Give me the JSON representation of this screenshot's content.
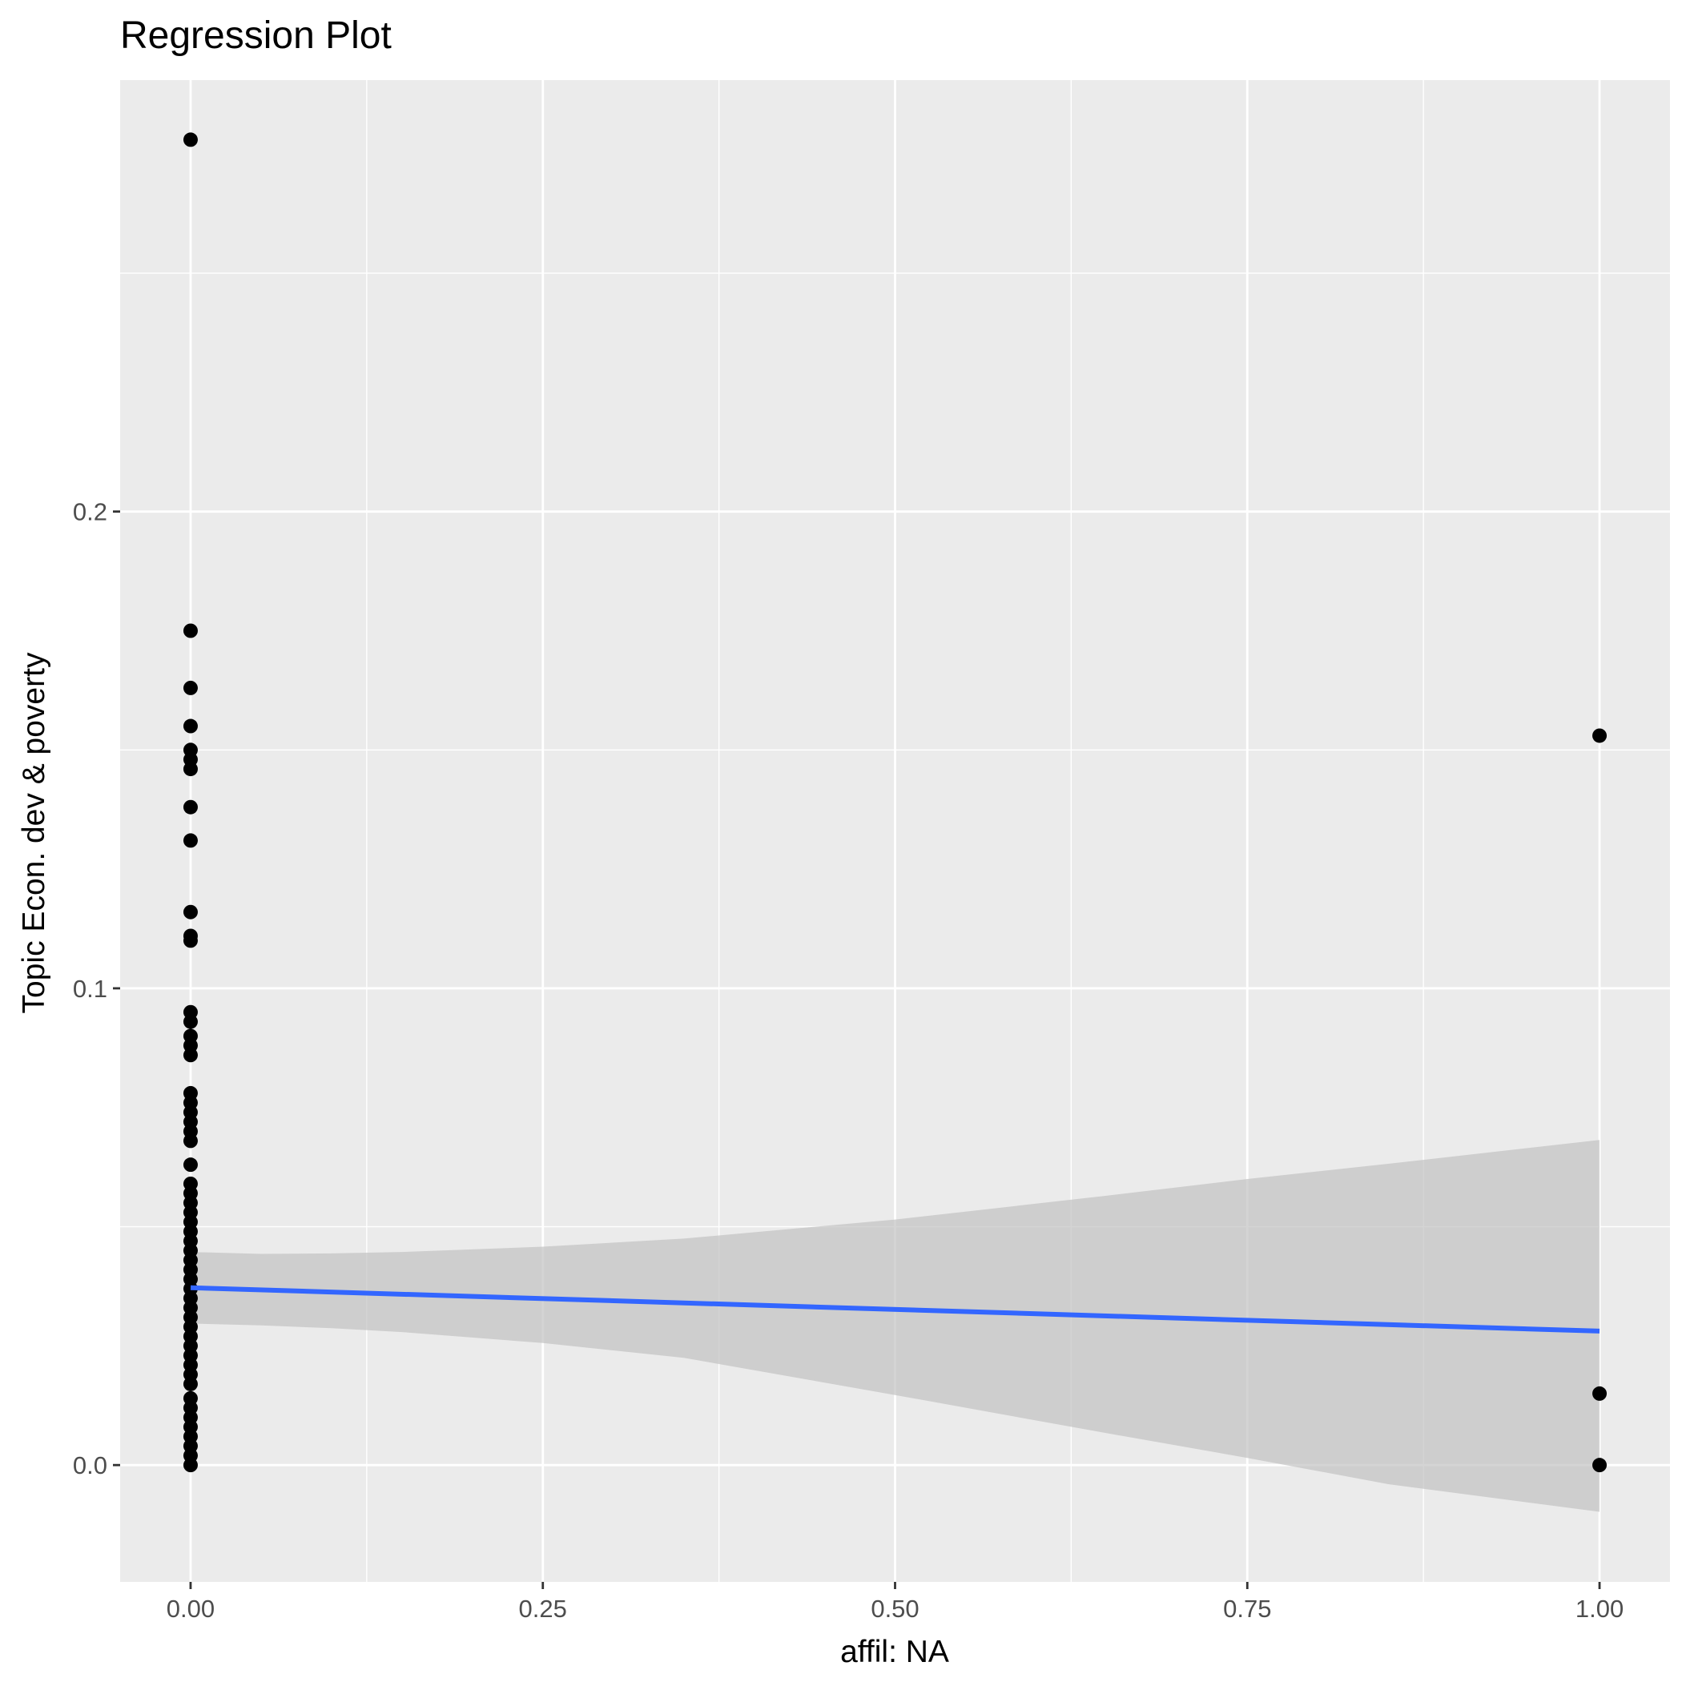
{
  "chart_data": {
    "type": "scatter",
    "title": "Regression Plot",
    "xlabel": "affil: NA",
    "ylabel": "Topic Econ. dev & poverty",
    "xlim": [
      -0.05,
      1.05
    ],
    "ylim": [
      -0.0245,
      0.2905
    ],
    "x_ticks": [
      0.0,
      0.25,
      0.5,
      0.75,
      1.0
    ],
    "x_tick_labels": [
      "0.00",
      "0.25",
      "0.50",
      "0.75",
      "1.00"
    ],
    "y_ticks": [
      0.0,
      0.1,
      0.2
    ],
    "y_tick_labels": [
      "0.0",
      "0.1",
      "0.2"
    ],
    "grid": true,
    "legend": "none",
    "colors": {
      "panel": "#ebebeb",
      "grid": "#ffffff",
      "points": "#000000",
      "fit_line": "#3366ff",
      "ribbon": "#c2c2c2"
    },
    "points": [
      {
        "x": 0,
        "y": 0.278
      },
      {
        "x": 0,
        "y": 0.175
      },
      {
        "x": 0,
        "y": 0.163
      },
      {
        "x": 0,
        "y": 0.155
      },
      {
        "x": 0,
        "y": 0.15
      },
      {
        "x": 0,
        "y": 0.148
      },
      {
        "x": 0,
        "y": 0.146
      },
      {
        "x": 0,
        "y": 0.138
      },
      {
        "x": 0,
        "y": 0.131
      },
      {
        "x": 0,
        "y": 0.116
      },
      {
        "x": 0,
        "y": 0.111
      },
      {
        "x": 0,
        "y": 0.11
      },
      {
        "x": 0,
        "y": 0.095
      },
      {
        "x": 0,
        "y": 0.093
      },
      {
        "x": 0,
        "y": 0.09
      },
      {
        "x": 0,
        "y": 0.088
      },
      {
        "x": 0,
        "y": 0.086
      },
      {
        "x": 0,
        "y": 0.078
      },
      {
        "x": 0,
        "y": 0.076
      },
      {
        "x": 0,
        "y": 0.074
      },
      {
        "x": 0,
        "y": 0.072
      },
      {
        "x": 0,
        "y": 0.07
      },
      {
        "x": 0,
        "y": 0.068
      },
      {
        "x": 0,
        "y": 0.063
      },
      {
        "x": 0,
        "y": 0.059
      },
      {
        "x": 0,
        "y": 0.057
      },
      {
        "x": 0,
        "y": 0.055
      },
      {
        "x": 0,
        "y": 0.053
      },
      {
        "x": 0,
        "y": 0.051
      },
      {
        "x": 0,
        "y": 0.049
      },
      {
        "x": 0,
        "y": 0.047
      },
      {
        "x": 0,
        "y": 0.045
      },
      {
        "x": 0,
        "y": 0.043
      },
      {
        "x": 0,
        "y": 0.041
      },
      {
        "x": 0,
        "y": 0.039
      },
      {
        "x": 0,
        "y": 0.037
      },
      {
        "x": 0,
        "y": 0.035
      },
      {
        "x": 0,
        "y": 0.033
      },
      {
        "x": 0,
        "y": 0.031
      },
      {
        "x": 0,
        "y": 0.029
      },
      {
        "x": 0,
        "y": 0.027
      },
      {
        "x": 0,
        "y": 0.025
      },
      {
        "x": 0,
        "y": 0.023
      },
      {
        "x": 0,
        "y": 0.021
      },
      {
        "x": 0,
        "y": 0.019
      },
      {
        "x": 0,
        "y": 0.017
      },
      {
        "x": 0,
        "y": 0.014
      },
      {
        "x": 0,
        "y": 0.012
      },
      {
        "x": 0,
        "y": 0.01
      },
      {
        "x": 0,
        "y": 0.008
      },
      {
        "x": 0,
        "y": 0.006
      },
      {
        "x": 0,
        "y": 0.004
      },
      {
        "x": 0,
        "y": 0.002
      },
      {
        "x": 0,
        "y": 0.0
      },
      {
        "x": 1,
        "y": 0.153
      },
      {
        "x": 1,
        "y": 0.015
      },
      {
        "x": 1,
        "y": 0.0
      }
    ],
    "fit": {
      "x": [
        0.0,
        1.0
      ],
      "y": [
        0.0372,
        0.0281
      ]
    },
    "ribbon": {
      "x": [
        0.0,
        0.05,
        0.1,
        0.15,
        0.25,
        0.35,
        0.5,
        0.65,
        0.75,
        0.85,
        1.0
      ],
      "upper": [
        0.0447,
        0.0443,
        0.0444,
        0.0447,
        0.0458,
        0.0475,
        0.0515,
        0.0565,
        0.06,
        0.0632,
        0.0682
      ],
      "lower": [
        0.0297,
        0.0293,
        0.0287,
        0.0279,
        0.0256,
        0.0225,
        0.0147,
        0.0067,
        0.0015,
        -0.004,
        -0.0098
      ]
    }
  }
}
